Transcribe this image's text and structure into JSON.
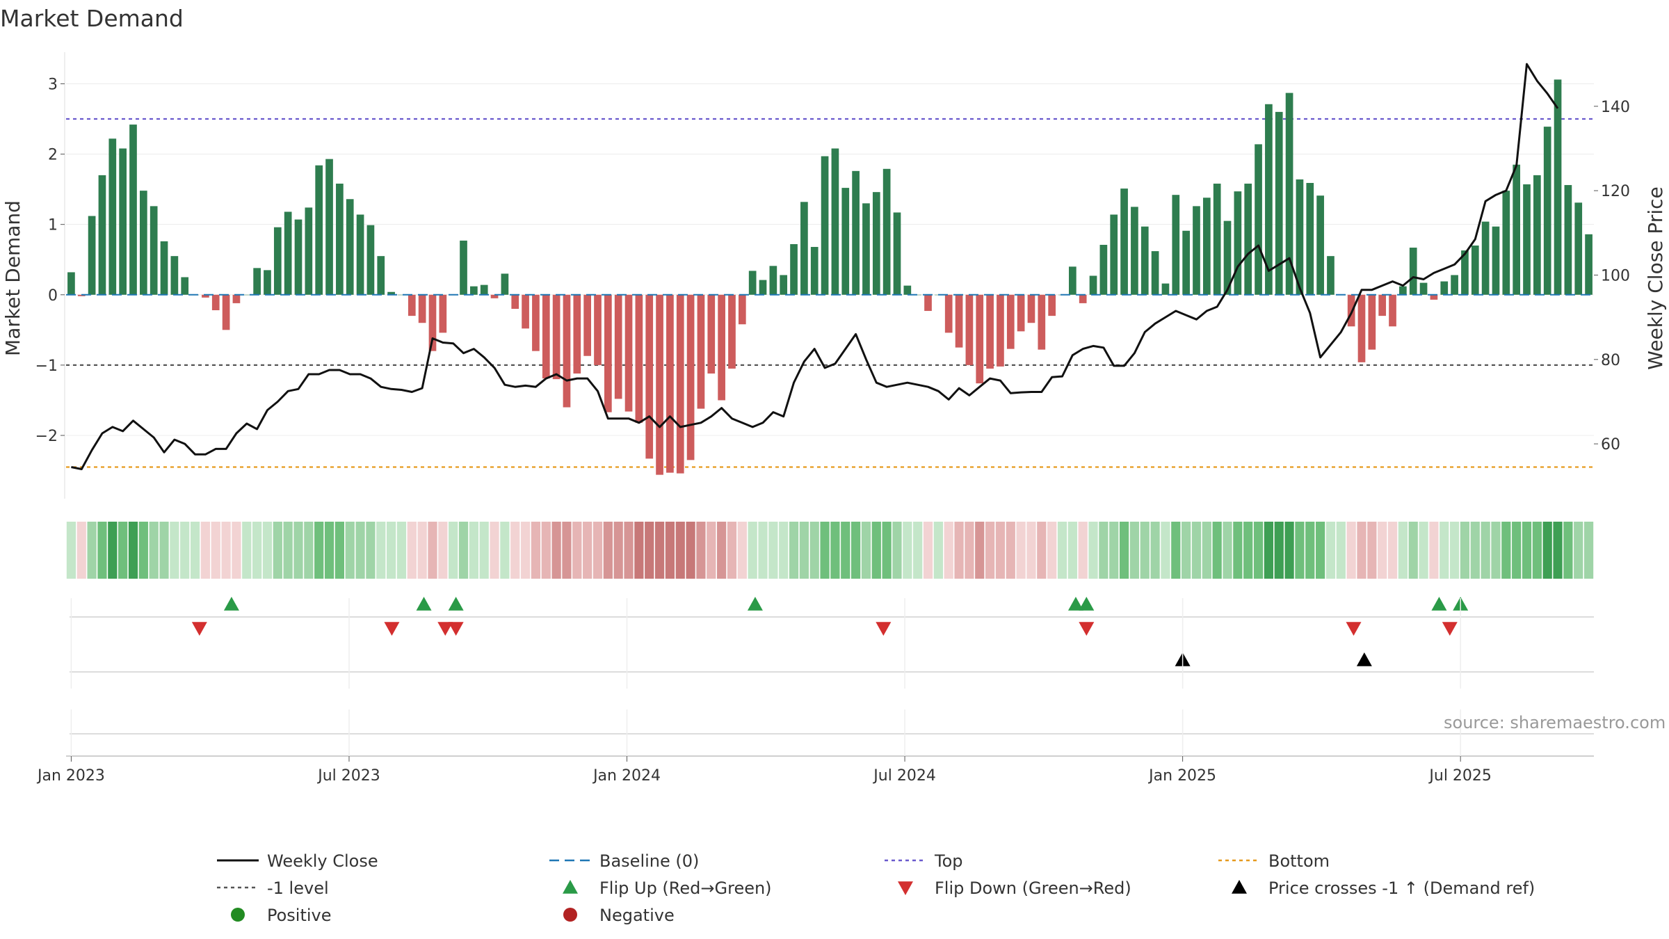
{
  "chart_data": {
    "type": "bar",
    "title": "Market Demand",
    "ylabel": "Market Demand",
    "y2label": "Weekly Close Price",
    "ylim": [
      -2.9,
      3.4
    ],
    "y2lim": [
      47,
      152
    ],
    "yticks": [
      3,
      2,
      1,
      0,
      -1,
      -2
    ],
    "y2ticks": [
      140,
      120,
      100,
      80,
      60
    ],
    "reference_lines": {
      "top": 2.5,
      "minus1": -1,
      "bottom": -2.45
    },
    "x_start": "2023-01-02",
    "x_end": "2025-09-22",
    "x_axis_labels": [
      "Jan 2023",
      "Jul 2023",
      "Jan 2024",
      "Jul 2024",
      "Jan 2025",
      "Jul 2025"
    ],
    "series": [
      {
        "name": "Market Demand (weekly)",
        "values": [
          0.32,
          -0.02,
          1.12,
          1.7,
          2.22,
          2.08,
          2.42,
          1.48,
          1.26,
          0.76,
          0.55,
          0.25,
          0.0,
          -0.04,
          -0.22,
          -0.5,
          -0.12,
          0.0,
          0.38,
          0.35,
          0.96,
          1.18,
          1.07,
          1.24,
          1.84,
          1.93,
          1.58,
          1.36,
          1.14,
          0.99,
          0.55,
          0.04,
          0.0,
          -0.3,
          -0.4,
          -0.8,
          -0.54,
          0.0,
          0.77,
          0.12,
          0.14,
          -0.05,
          0.3,
          -0.2,
          -0.48,
          -0.8,
          -1.19,
          -1.2,
          -1.6,
          -1.12,
          -0.87,
          -1.0,
          -1.67,
          -1.48,
          -1.66,
          -1.82,
          -2.33,
          -2.56,
          -2.53,
          -2.54,
          -2.35,
          -1.62,
          -1.12,
          -1.5,
          -1.05,
          -0.42,
          0.34,
          0.21,
          0.41,
          0.28,
          0.72,
          1.32,
          0.68,
          1.97,
          2.08,
          1.52,
          1.76,
          1.3,
          1.46,
          1.79,
          1.17,
          0.13,
          0.0,
          -0.23,
          0.0,
          -0.54,
          -0.75,
          -1.0,
          -1.26,
          -1.05,
          -1.02,
          -0.77,
          -0.52,
          -0.4,
          -0.78,
          -0.3,
          0.0,
          0.4,
          -0.12,
          0.27,
          0.71,
          1.14,
          1.51,
          1.25,
          0.97,
          0.62,
          0.16,
          1.42,
          0.91,
          1.26,
          1.38,
          1.58,
          1.05,
          1.47,
          1.58,
          2.14,
          2.71,
          2.6,
          2.87,
          1.64,
          1.59,
          1.41,
          0.55,
          0.0,
          -0.45,
          -0.96,
          -0.78,
          -0.3,
          -0.45,
          0.12,
          0.67,
          0.17,
          -0.07,
          0.19,
          0.28,
          0.63,
          0.7,
          1.04,
          0.97,
          1.48,
          1.85,
          1.57,
          1.7,
          2.39,
          3.06,
          1.56,
          1.31,
          0.86
        ]
      },
      {
        "name": "Weekly Close",
        "values": [
          54.5,
          54.0,
          58.5,
          62.5,
          64.0,
          63.0,
          65.5,
          63.5,
          61.5,
          58.0,
          61.0,
          60.0,
          57.5,
          57.5,
          58.8,
          58.8,
          62.5,
          64.8,
          63.5,
          68.0,
          70.0,
          72.5,
          73.0,
          76.5,
          76.5,
          77.5,
          77.5,
          76.5,
          76.5,
          75.5,
          73.5,
          73.0,
          72.8,
          72.3,
          73.2,
          85.0,
          84.0,
          83.8,
          81.5,
          82.5,
          80.5,
          78.0,
          74.0,
          73.5,
          73.8,
          73.5,
          75.5,
          76.5,
          75.0,
          75.5,
          75.5,
          72.5,
          66.0,
          66.0,
          66.0,
          65.0,
          66.5,
          64.0,
          66.5,
          64.0,
          64.5,
          65.0,
          66.5,
          68.5,
          66.0,
          65.0,
          64.0,
          65.0,
          67.5,
          66.5,
          74.5,
          79.5,
          82.5,
          78.0,
          79.0,
          82.5,
          86.0,
          80.0,
          74.5,
          73.5,
          74.0,
          74.5,
          74.0,
          73.5,
          72.5,
          70.5,
          73.2,
          71.5,
          73.5,
          75.5,
          75.0,
          72.0,
          72.2,
          72.3,
          72.3,
          75.8,
          76.0,
          81.0,
          82.5,
          83.2,
          82.8,
          78.5,
          78.5,
          81.5,
          86.5,
          88.5,
          90.0,
          91.5,
          90.5,
          89.5,
          91.5,
          92.5,
          96.5,
          102.0,
          105.0,
          107.0,
          101.0,
          102.5,
          104.0,
          97.0,
          91.0,
          80.5,
          83.5,
          86.5,
          91.0,
          96.5,
          96.5,
          97.5,
          98.5,
          97.5,
          99.5,
          99.0,
          100.5,
          101.5,
          102.5,
          105.0,
          108.5,
          117.5,
          119.0,
          120.0,
          126.0,
          150.0,
          146.0,
          143.0,
          139.5
        ]
      }
    ],
    "heat_strip": {
      "palette": {
        "pos1": "#c4e6c9",
        "pos2": "#9fd4a7",
        "pos3": "#6fbf7c",
        "pos4": "#3e9f54",
        "neg1": "#f2d3d3",
        "neg2": "#e6b5b5",
        "neg3": "#d69595",
        "neg4": "#c77878"
      }
    },
    "signal_rows": [
      {
        "name": "Flip Up (Red→Green)",
        "markers": [
          "2023-04-17",
          "2023-08-21",
          "2023-09-11",
          "2024-03-25",
          "2024-10-21",
          "2024-10-28",
          "2025-06-16",
          "2025-06-30"
        ]
      },
      {
        "name": "Flip Down (Green→Red)",
        "markers": [
          "2023-03-27",
          "2023-07-31",
          "2023-09-04",
          "2023-09-11",
          "2024-06-17",
          "2024-10-28",
          "2025-04-21",
          "2025-06-23"
        ]
      },
      {
        "name": "Price crosses -1 ↑ (Demand ref)",
        "markers": [
          "2024-12-30",
          "2025-04-28"
        ]
      }
    ],
    "legend": {
      "placement": "bottom",
      "items": [
        {
          "label": "Weekly Close",
          "symbol": "line-black"
        },
        {
          "label": "Baseline (0)",
          "symbol": "line-dashed-blue"
        },
        {
          "label": "Top",
          "symbol": "line-dotted-purple"
        },
        {
          "label": "Bottom",
          "symbol": "line-dotted-orange"
        },
        {
          "label": "-1 level",
          "symbol": "line-dotted-gray"
        },
        {
          "label": "Flip Up (Red→Green)",
          "symbol": "triangle-up-green"
        },
        {
          "label": "Flip Down (Green→Red)",
          "symbol": "triangle-down-red"
        },
        {
          "label": "Price crosses -1 ↑ (Demand ref)",
          "symbol": "triangle-up-black"
        },
        {
          "label": "Positive",
          "symbol": "circle-green"
        },
        {
          "label": "Negative",
          "symbol": "circle-red"
        }
      ]
    },
    "source": "source: sharemaestro.com"
  },
  "colors": {
    "positive_bar": "#2e7d4f",
    "negative_bar": "#cd5c5c",
    "price_line": "#111111",
    "baseline": "#1f77b4",
    "top_line": "#6a5acd",
    "bottom_line": "#e69a1e",
    "minus1_line": "#555555",
    "flip_up": "#2a9a47",
    "flip_down": "#d32f2f",
    "cross_marker": "#000000",
    "positive_dot": "#228b22",
    "negative_dot": "#b22222"
  }
}
